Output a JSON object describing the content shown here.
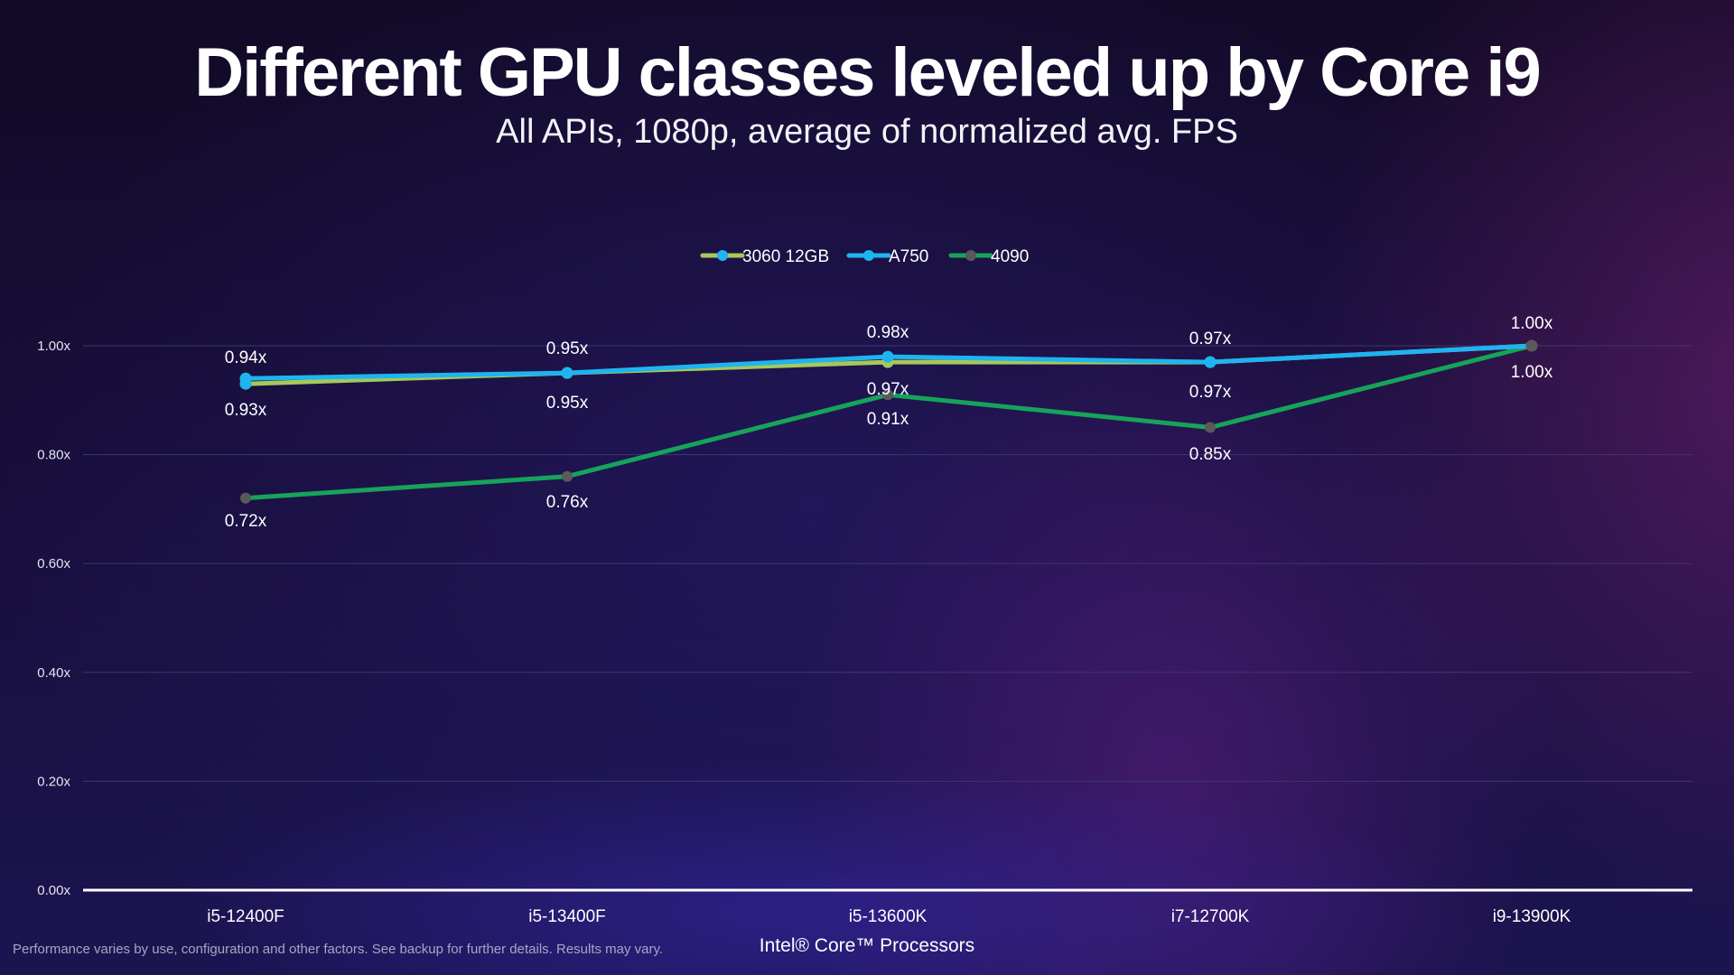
{
  "title": "Different GPU classes leveled up by Core i9",
  "subtitle": "All APIs, 1080p, average of normalized avg. FPS",
  "footnote": "Performance varies by use, configuration and other factors. See backup for further details. Results may vary.",
  "colors": {
    "series_3060": "#a6c85a",
    "series_a750": "#1eb4f0",
    "series_4090": "#16a35a",
    "marker_4090": "#5a5a5a",
    "gridline": "#3d3670",
    "baseline": "#ffffff"
  },
  "chart_data": {
    "type": "line",
    "xlabel": "Intel® Core™ Processors",
    "ylabel": "",
    "categories": [
      "i5-12400F",
      "i5-13400F",
      "i5-13600K",
      "i7-12700K",
      "i9-13900K"
    ],
    "ylim": [
      0,
      1.0
    ],
    "yticks": [
      "0.00x",
      "0.20x",
      "0.40x",
      "0.60x",
      "0.80x",
      "1.00x"
    ],
    "ytick_values": [
      0,
      0.2,
      0.4,
      0.6,
      0.8,
      1.0
    ],
    "grid": true,
    "legend": "top-center",
    "series": [
      {
        "name": "3060 12GB",
        "values": [
          0.93,
          0.95,
          0.97,
          0.97,
          1.0
        ],
        "labels": [
          "0.93x",
          "0.95x",
          "0.97x",
          "0.97x",
          "1.00x"
        ]
      },
      {
        "name": "A750",
        "values": [
          0.94,
          0.95,
          0.98,
          0.97,
          1.0
        ],
        "labels": [
          "0.94x",
          "0.95x",
          "0.98x",
          "0.97x",
          "1.00x"
        ]
      },
      {
        "name": "4090",
        "values": [
          0.72,
          0.76,
          0.91,
          0.85,
          1.0
        ],
        "labels": [
          "0.72x",
          "0.76x",
          "0.91x",
          "0.85x",
          ""
        ]
      }
    ]
  }
}
